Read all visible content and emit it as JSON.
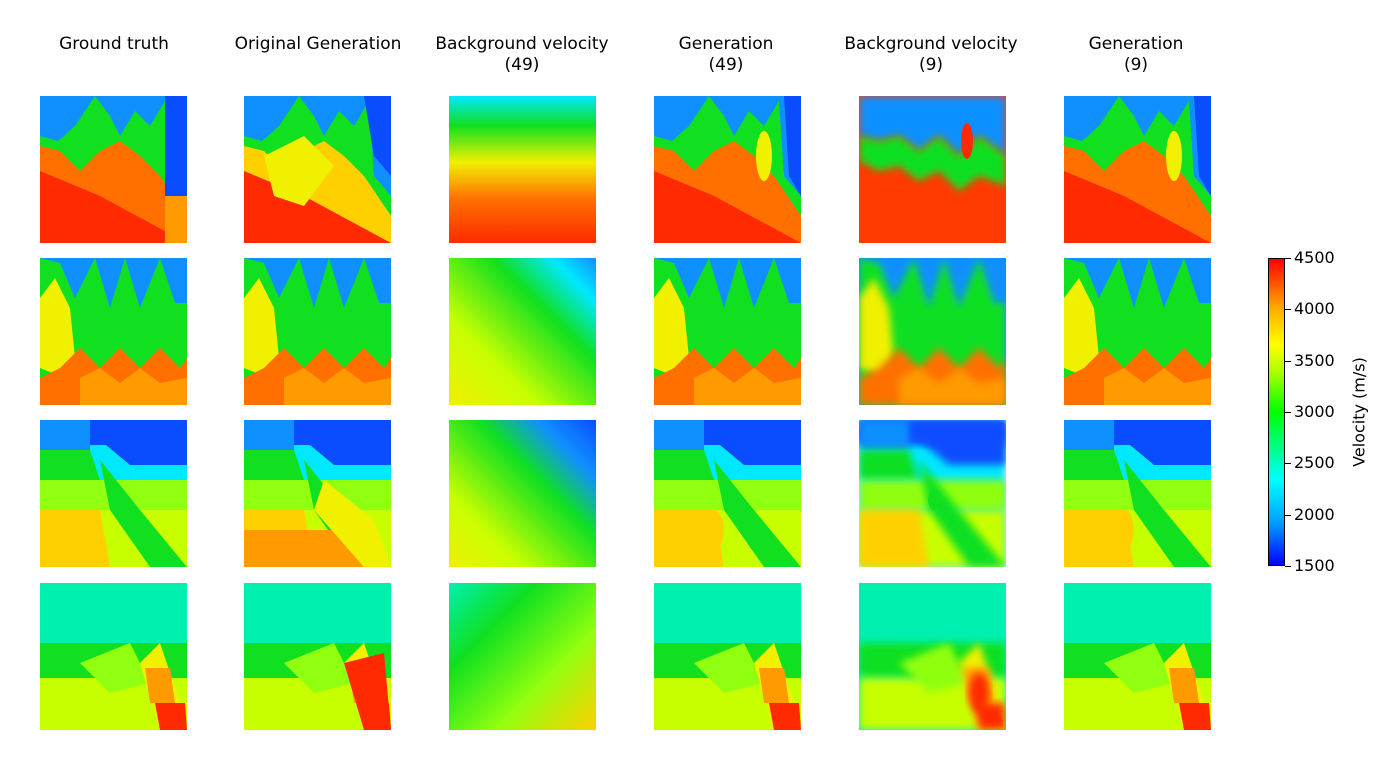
{
  "columns": [
    {
      "title": "Ground truth"
    },
    {
      "title": "Original Generation"
    },
    {
      "title": "Background velocity\n(49)"
    },
    {
      "title": "Generation\n(49)"
    },
    {
      "title": "Background velocity\n(9)"
    },
    {
      "title": "Generation\n(9)"
    }
  ],
  "rows": 4,
  "colorbar": {
    "label": "Velocity (m/s)",
    "min": 1500,
    "max": 4500,
    "ticks": [
      "4500",
      "4000",
      "3500",
      "3000",
      "2500",
      "2000",
      "1500"
    ],
    "colormap": [
      "#0000ff",
      "#00a0ff",
      "#00ffff",
      "#00ff00",
      "#aaff00",
      "#ffff00",
      "#ffaa00",
      "#ff0000"
    ]
  },
  "chart_data": {
    "type": "heatmap",
    "title": "",
    "description_rows": [
      "velocity model 1",
      "velocity model 2",
      "velocity model 3",
      "velocity model 4"
    ],
    "value_range": [
      1500,
      4500
    ],
    "unit": "m/s"
  }
}
